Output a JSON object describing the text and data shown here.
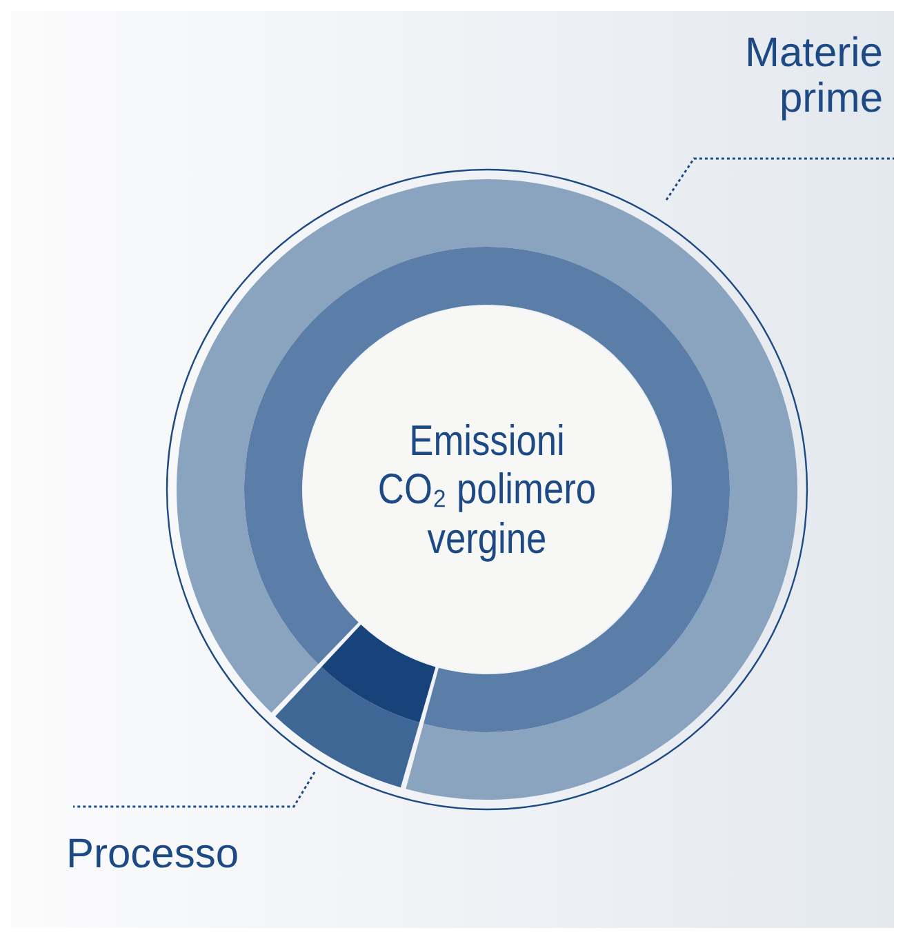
{
  "chart_data": [
    {
      "type": "donut",
      "title": "Emissioni CO₂ polimero vergine",
      "categories": [
        "Materie prime",
        "Processo"
      ],
      "values": [
        92.5,
        7.5
      ],
      "colors": [
        "#8aa3bf",
        "#3f6795"
      ]
    },
    {
      "type": "donut",
      "categories": [
        null,
        null
      ],
      "values": [
        92.5,
        7.5
      ],
      "colors": [
        "#5a7ea8",
        "#17427a"
      ]
    }
  ]
}
